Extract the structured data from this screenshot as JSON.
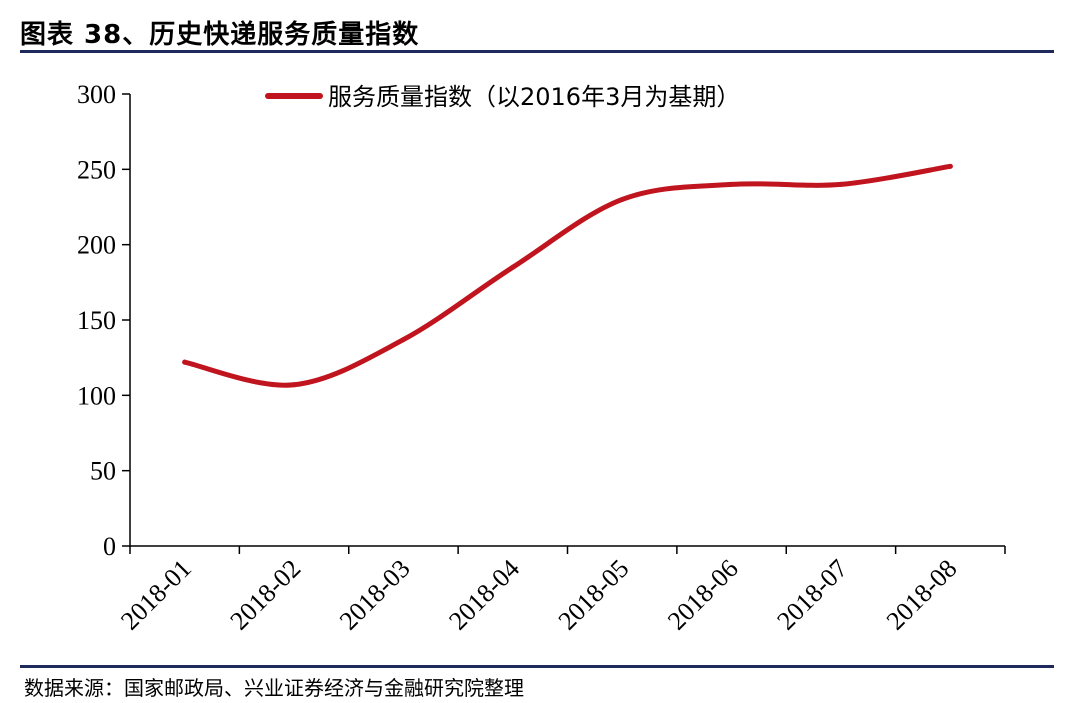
{
  "header": {
    "title": "图表 38、历史快递服务质量指数"
  },
  "footer": {
    "source": "数据来源：国家邮政局、兴业证券经济与金融研究院整理"
  },
  "colors": {
    "series": "#c0151f",
    "rule": "#1f2a5c",
    "axis": "#000000"
  },
  "chart_data": {
    "type": "line",
    "categories": [
      "2018-01",
      "2018-02",
      "2018-03",
      "2018-04",
      "2018-05",
      "2018-06",
      "2018-07",
      "2018-08"
    ],
    "series": [
      {
        "name": "服务质量指数（以2016年3月为基期）",
        "values": [
          122,
          107,
          137,
          185,
          230,
          240,
          240,
          252
        ]
      }
    ],
    "ylim": [
      0,
      300
    ],
    "yticks": [
      0,
      50,
      100,
      150,
      200,
      250,
      300
    ],
    "smooth": true,
    "grid": false,
    "legend": "top"
  }
}
